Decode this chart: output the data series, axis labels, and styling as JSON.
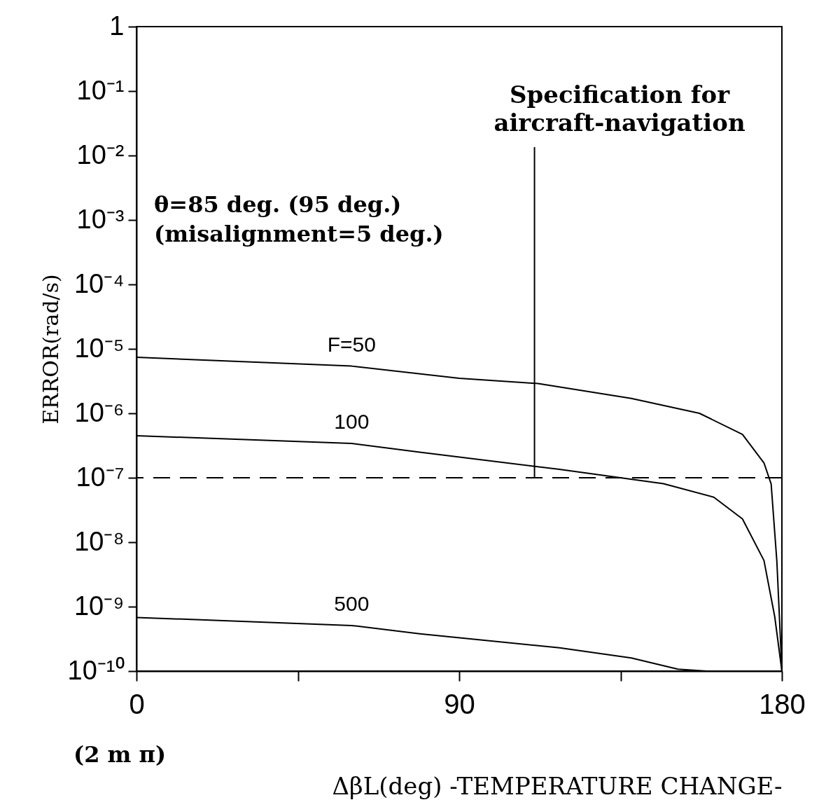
{
  "chart_data": {
    "type": "line",
    "xlabel": "ΔβL(deg) -TEMPERATURE CHANGE-",
    "ylabel": "ERROR(rad/s)",
    "log": "y",
    "xlim": [
      0,
      180
    ],
    "xticks": [
      0,
      {
        "value": 45,
        "label": null
      },
      90,
      {
        "value": 135,
        "label": null
      },
      180
    ],
    "ylim": [
      1e-10,
      1
    ],
    "yticks": [
      1,
      {
        "value": 0.1,
        "label": "10⁻¹"
      },
      {
        "value": 0.01,
        "label": "10⁻²"
      },
      {
        "value": 0.001,
        "label": "10⁻³"
      },
      {
        "value": 0.0001,
        "label": "10⁻⁴"
      },
      {
        "value": 1e-05,
        "label": "10⁻⁵"
      },
      {
        "value": 1e-06,
        "label": "10⁻⁶"
      },
      {
        "value": 1e-07,
        "label": "10⁻⁷"
      },
      {
        "value": 1e-08,
        "label": "10⁻⁸"
      },
      {
        "value": 1e-09,
        "label": "10⁻⁹"
      },
      {
        "value": 1e-10,
        "label": "10⁻¹⁰"
      }
    ],
    "grid": false,
    "marker": "none",
    "line_style": "solid",
    "series": [
      {
        "name": "F=50",
        "color": "#000000",
        "x": [
          0,
          60,
          90,
          112,
          138,
          157,
          169,
          175,
          177,
          178.6,
          180
        ],
        "values": [
          7.4e-06,
          5.4e-06,
          3.5e-06,
          2.9e-06,
          1.7e-06,
          1e-06,
          4.7e-07,
          1.7e-07,
          8e-08,
          5e-09,
          1e-10
        ]
      },
      {
        "name": "100",
        "color": "#000000",
        "x": [
          0,
          60,
          79,
          118,
          147,
          161,
          169,
          175,
          178,
          180
        ],
        "values": [
          4.5e-07,
          3.4e-07,
          2.5e-07,
          1.35e-07,
          8.1e-08,
          5e-08,
          2.3e-08,
          5.2e-09,
          7e-10,
          1e-10
        ]
      },
      {
        "name": "500",
        "color": "#000000",
        "x": [
          0,
          60,
          79,
          118,
          138,
          151,
          159
        ],
        "values": [
          6.8e-10,
          5.1e-10,
          3.8e-10,
          2.3e-10,
          1.6e-10,
          1.07e-10,
          1e-10
        ]
      }
    ],
    "ref_lines": [
      {
        "axis": "y",
        "value": 1e-07,
        "color": "#000000",
        "line_style": "dashed"
      }
    ],
    "annotations": [
      {
        "text": "Specification for\naircraft-navigation",
        "x": 111,
        "y": 1e-07
      },
      "θ=85 deg. (95 deg.)\n(misalignment=5 deg.)",
      "(2 m π)"
    ]
  }
}
